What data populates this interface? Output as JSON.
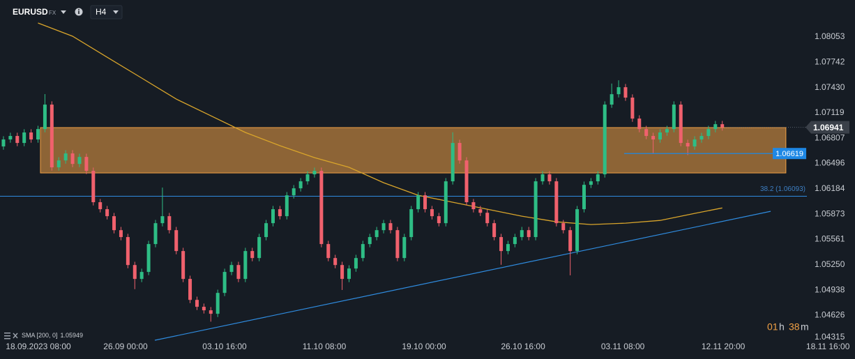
{
  "toolbar": {
    "symbol": "EURUSD",
    "market": "FX",
    "timeframe": "H4"
  },
  "chart_data": {
    "type": "candlestick",
    "up_color": "#2ebd85",
    "down_color": "#f0616d",
    "candles": {
      "open": [
        1.06706,
        1.06792,
        1.06835,
        1.06749,
        1.06878,
        1.06792,
        1.0692,
        1.07221,
        1.06449,
        1.06534,
        1.0662,
        1.06491,
        1.06577,
        1.06406,
        1.0602,
        1.05934,
        1.05848,
        1.05676,
        1.05591,
        1.05247,
        1.05076,
        1.05162,
        1.05505,
        1.05762,
        1.05848,
        1.05676,
        1.05419,
        1.05076,
        1.04818,
        1.04733,
        1.0469,
        1.04647,
        1.04904,
        1.05162,
        1.05247,
        1.05076,
        1.05419,
        1.05333,
        1.05591,
        1.05762,
        1.05934,
        1.05848,
        1.06105,
        1.06191,
        1.06277,
        1.06363,
        1.06406,
        1.05505,
        1.05333,
        1.05247,
        1.05076,
        1.05204,
        1.05333,
        1.05505,
        1.05591,
        1.05676,
        1.05762,
        1.05676,
        1.05333,
        1.05591,
        1.05934,
        1.06105,
        1.05934,
        1.05848,
        1.05762,
        1.06277,
        1.06749,
        1.06534,
        1.0602,
        1.05934,
        1.0589,
        1.05762,
        1.05591,
        1.05419,
        1.05505,
        1.05591,
        1.05676,
        1.05591,
        1.06277,
        1.06363,
        1.06277,
        1.05762,
        1.05676,
        1.05419,
        1.05934,
        1.06234,
        1.06277,
        1.06363,
        1.07221,
        1.07349,
        1.07435,
        1.07307,
        1.07049,
        1.0692,
        1.06835,
        1.06792,
        1.06878,
        1.0692,
        1.07221,
        1.06749,
        1.06706,
        1.06792,
        1.06835,
        1.0692,
        1.0698
      ],
      "high": [
        1.06832,
        1.06875,
        1.06875,
        1.06918,
        1.06918,
        1.0696,
        1.0735,
        1.07261,
        1.06574,
        1.0666,
        1.0666,
        1.06617,
        1.06617,
        1.06446,
        1.0606,
        1.05974,
        1.05888,
        1.05716,
        1.05631,
        1.05287,
        1.05202,
        1.05545,
        1.05802,
        1.062,
        1.05888,
        1.05716,
        1.05459,
        1.05116,
        1.04858,
        1.04773,
        1.0473,
        1.04944,
        1.05202,
        1.05287,
        1.05287,
        1.05459,
        1.05459,
        1.05631,
        1.05802,
        1.05974,
        1.05974,
        1.06145,
        1.06231,
        1.06317,
        1.06403,
        1.06446,
        1.06446,
        1.05545,
        1.05373,
        1.05287,
        1.05244,
        1.05373,
        1.05545,
        1.05631,
        1.05716,
        1.05802,
        1.05802,
        1.05716,
        1.05631,
        1.05974,
        1.06145,
        1.06145,
        1.05974,
        1.05888,
        1.06317,
        1.0688,
        1.06789,
        1.06574,
        1.0606,
        1.05974,
        1.0593,
        1.05802,
        1.05631,
        1.05545,
        1.05631,
        1.05716,
        1.05716,
        1.06317,
        1.06403,
        1.06403,
        1.06317,
        1.05802,
        1.05716,
        1.05974,
        1.06274,
        1.06317,
        1.06403,
        1.07261,
        1.0748,
        1.0752,
        1.07475,
        1.07347,
        1.07089,
        1.0696,
        1.06875,
        1.06918,
        1.0696,
        1.07261,
        1.07261,
        1.06789,
        1.06832,
        1.06875,
        1.0696,
        1.0702,
        1.0702
      ],
      "low": [
        1.06666,
        1.06752,
        1.06709,
        1.06709,
        1.06752,
        1.06752,
        1.0688,
        1.06409,
        1.06409,
        1.06494,
        1.06451,
        1.06451,
        1.06366,
        1.0598,
        1.05894,
        1.05808,
        1.05636,
        1.05551,
        1.05207,
        1.0495,
        1.05036,
        1.05122,
        1.05465,
        1.05722,
        1.05636,
        1.05379,
        1.05036,
        1.04778,
        1.04693,
        1.0465,
        1.0455,
        1.04607,
        1.04864,
        1.05122,
        1.05036,
        1.05036,
        1.05293,
        1.05293,
        1.05551,
        1.05722,
        1.05808,
        1.05808,
        1.06065,
        1.06151,
        1.06237,
        1.06323,
        1.05465,
        1.05293,
        1.05207,
        1.0494,
        1.05036,
        1.05164,
        1.05293,
        1.05465,
        1.05551,
        1.05636,
        1.05636,
        1.05293,
        1.05293,
        1.05551,
        1.05894,
        1.05894,
        1.05808,
        1.05722,
        1.05722,
        1.06237,
        1.06494,
        1.0598,
        1.05894,
        1.0585,
        1.05722,
        1.05551,
        1.0525,
        1.05379,
        1.05465,
        1.05551,
        1.05551,
        1.05551,
        1.06237,
        1.06237,
        1.05722,
        1.05636,
        1.0512,
        1.05379,
        1.05894,
        1.06194,
        1.06237,
        1.06323,
        1.07181,
        1.07309,
        1.07267,
        1.07009,
        1.0688,
        1.06795,
        1.0662,
        1.06752,
        1.06838,
        1.0688,
        1.06709,
        1.066,
        1.06666,
        1.06752,
        1.06795,
        1.0688,
        1.06901
      ],
      "close": [
        1.06792,
        1.06835,
        1.06749,
        1.06878,
        1.06792,
        1.0692,
        1.07221,
        1.06449,
        1.06534,
        1.0662,
        1.06491,
        1.06577,
        1.06406,
        1.0602,
        1.05934,
        1.05848,
        1.05676,
        1.05591,
        1.05247,
        1.05076,
        1.05162,
        1.05505,
        1.05762,
        1.05848,
        1.05676,
        1.05419,
        1.05076,
        1.04818,
        1.04733,
        1.0469,
        1.04647,
        1.04904,
        1.05162,
        1.05247,
        1.05076,
        1.05419,
        1.05333,
        1.05591,
        1.05762,
        1.05934,
        1.05848,
        1.06105,
        1.06191,
        1.06277,
        1.06363,
        1.06406,
        1.05505,
        1.05333,
        1.05247,
        1.05076,
        1.05204,
        1.05333,
        1.05505,
        1.05591,
        1.05676,
        1.05762,
        1.05676,
        1.05333,
        1.05591,
        1.05934,
        1.06105,
        1.05934,
        1.05848,
        1.05762,
        1.06277,
        1.06749,
        1.06534,
        1.0602,
        1.05934,
        1.0589,
        1.05762,
        1.05591,
        1.05419,
        1.05505,
        1.05591,
        1.05676,
        1.05591,
        1.06277,
        1.06363,
        1.06277,
        1.05762,
        1.05676,
        1.05419,
        1.05934,
        1.06234,
        1.06277,
        1.06363,
        1.07221,
        1.07349,
        1.07435,
        1.07307,
        1.07049,
        1.0692,
        1.06835,
        1.06792,
        1.06878,
        1.0692,
        1.07221,
        1.06749,
        1.06706,
        1.06792,
        1.06835,
        1.0692,
        1.0698,
        1.06941
      ]
    },
    "xlim": [
      -0.5,
      123.2
    ],
    "xticks": [
      {
        "value": 5.05,
        "label": "18.09.2023 08:00"
      },
      {
        "value": 17.66,
        "label": "26.09 00:00"
      },
      {
        "value": 31.99,
        "label": "03.10 16:00"
      },
      {
        "value": 46.42,
        "label": "11.10 08:00"
      },
      {
        "value": 60.85,
        "label": "19.10 00:00"
      },
      {
        "value": 75.18,
        "label": "26.10 16:00"
      },
      {
        "value": 89.61,
        "label": "03.11 08:00"
      },
      {
        "value": 104.14,
        "label": "12.11 20:00"
      },
      {
        "value": 119.28,
        "label": "18.11 16:00"
      }
    ],
    "ylim": [
      1.04305,
      1.08508
    ],
    "yticks": [
      1.08053,
      {
        "value": 1.07742,
        "label": "1.07742"
      },
      {
        "value": 1.0743,
        "label": "1.07430"
      },
      1.07119,
      1.06807,
      1.06496,
      1.06184,
      1.05873,
      1.05561,
      {
        "value": 1.0525,
        "label": "1.05250"
      },
      1.04938,
      1.04626,
      1.04315
    ],
    "series": [
      {
        "name": "SMA [200, 0]",
        "color": "#d9a52b",
        "x": [
          5,
          10,
          15,
          20,
          25,
          30,
          35,
          40,
          45,
          50,
          55,
          60,
          65,
          70,
          75,
          80,
          85,
          90,
          95,
          100,
          104
        ],
        "values": [
          1.08225,
          1.08062,
          1.07804,
          1.07547,
          1.07289,
          1.07083,
          1.06878,
          1.06715,
          1.06569,
          1.06449,
          1.0626,
          1.06105,
          1.0602,
          1.05934,
          1.05848,
          1.05779,
          1.05745,
          1.05762,
          1.05796,
          1.05882,
          1.05949
        ]
      }
    ],
    "zone": {
      "x": [
        5.35,
        113.2
      ],
      "values": [
        1.06938,
        1.0638
      ],
      "color": "#f0a045"
    },
    "trendline": {
      "x": [
        21.9,
        111.0
      ],
      "values": [
        1.04321,
        1.05908
      ],
      "color": "#2f8ce0"
    },
    "fib_level": {
      "value": 1.06093,
      "label": "38.2 (1.06093)"
    },
    "level_line": {
      "x": [
        89.8,
        111.3
      ],
      "value": 1.06619,
      "color": "#1e88e5"
    },
    "last_price": 1.06941
  },
  "countdown": {
    "hours": "01",
    "hours_unit": "h",
    "minutes": "38",
    "minutes_unit": "m"
  }
}
